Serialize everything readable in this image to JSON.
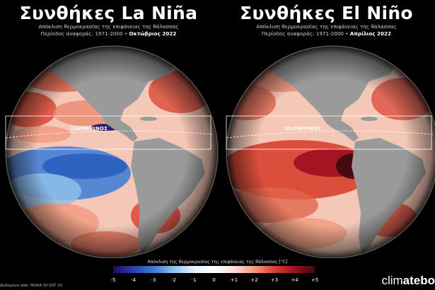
{
  "left_panel": {
    "title": "Συνθήκες La Niña",
    "subtitle": "Απόκλιση θερμοκρασίας της επιφάνειας της θάλασσας",
    "period_prefix": "Περίοδος αναφοράς: 1971-2000 •",
    "period_month": "Οκτώβριος 2022",
    "equator_label": "ΙΣΗΜΕΡΙΝΟΣ"
  },
  "right_panel": {
    "title": "Συνθήκες El Niño",
    "subtitle": "Απόκλιση θερμοκρασίας της επιφάνειας της θάλασσας",
    "period_prefix": "Περίοδος αναφοράς: 1971-2000 •",
    "period_month": "Απρίλιος 2022",
    "equator_label": "ΙΣΗΜΕΡΙΝΟΣ"
  },
  "colorbar": {
    "title": "Απόκλιση της θερμοκρασίας της επιφάνειας της θάλασσας [°C]",
    "ticks": [
      "-5",
      "-4",
      "-3",
      "-2",
      "-1",
      "0",
      "+1",
      "+2",
      "+3",
      "+4",
      "+5"
    ],
    "min": -5,
    "max": 5,
    "colors": [
      "#1a0a5c",
      "#2b3fb0",
      "#3a7bd5",
      "#8fc0ea",
      "#e6f2fb",
      "#ffffff",
      "#fbe0d4",
      "#f19a7e",
      "#d9402f",
      "#9e0f1e",
      "#3a0a10"
    ]
  },
  "source": "Δεδομένα από: NOAA OI SST V2",
  "brand": {
    "prefix": "clim",
    "bold": "atebo"
  },
  "colors": {
    "ocean_warm": "#d9402f",
    "ocean_cool": "#3a7bd5",
    "land": "#9a9a9a",
    "background": "#000000"
  }
}
